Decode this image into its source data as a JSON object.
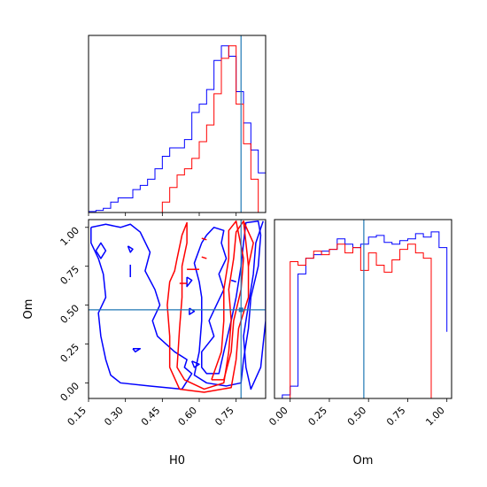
{
  "chart_data": {
    "type": "corner",
    "parameters": [
      "H0",
      "Om"
    ],
    "colors": {
      "series_a": "#0000ff",
      "series_b": "#ff0000",
      "truth": "#1f77b4"
    },
    "truth": {
      "H0": 0.77,
      "Om": 0.47
    },
    "axes": {
      "hist_H0": {
        "xlim": [
          0.15,
          0.87
        ],
        "ylabel": ""
      },
      "scatter": {
        "xlim": [
          0.15,
          0.87
        ],
        "ylim": [
          -0.1,
          1.05
        ],
        "xlabel": "H0",
        "ylabel": "Om",
        "xticks": [
          "0.15",
          "0.30",
          "0.45",
          "0.60",
          "0.75"
        ],
        "yticks": [
          "0.00",
          "0.25",
          "0.50",
          "0.75",
          "1.00"
        ]
      },
      "hist_Om": {
        "xlim": [
          -0.1,
          1.03
        ],
        "xlabel": "Om",
        "xticks": [
          "0.00",
          "0.25",
          "0.50",
          "0.75",
          "1.00"
        ]
      }
    },
    "hist_H0": {
      "blue": {
        "edges": [
          0.15,
          0.18,
          0.21,
          0.24,
          0.27,
          0.3,
          0.33,
          0.36,
          0.39,
          0.42,
          0.45,
          0.48,
          0.51,
          0.54,
          0.57,
          0.6,
          0.63,
          0.66,
          0.69,
          0.72,
          0.75,
          0.78,
          0.81,
          0.84,
          0.87
        ],
        "values": [
          0.005,
          0.01,
          0.02,
          0.05,
          0.07,
          0.07,
          0.11,
          0.13,
          0.16,
          0.21,
          0.27,
          0.31,
          0.31,
          0.35,
          0.48,
          0.52,
          0.59,
          0.73,
          0.8,
          0.75,
          0.58,
          0.43,
          0.3,
          0.19
        ]
      },
      "red": {
        "edges": [
          0.45,
          0.48,
          0.51,
          0.54,
          0.57,
          0.6,
          0.63,
          0.66,
          0.69,
          0.72,
          0.75,
          0.78,
          0.81,
          0.84
        ],
        "values": [
          0.05,
          0.12,
          0.18,
          0.21,
          0.26,
          0.34,
          0.42,
          0.57,
          0.74,
          0.8,
          0.52,
          0.33,
          0.16
        ]
      }
    },
    "hist_Om": {
      "blue": {
        "edges": [
          -0.05,
          0.0,
          0.05,
          0.1,
          0.15,
          0.2,
          0.25,
          0.3,
          0.35,
          0.4,
          0.45,
          0.5,
          0.55,
          0.6,
          0.65,
          0.7,
          0.75,
          0.8,
          0.85,
          0.9,
          0.95,
          1.0
        ],
        "values": [
          0.02,
          0.07,
          0.71,
          0.8,
          0.82,
          0.84,
          0.85,
          0.91,
          0.88,
          0.86,
          0.88,
          0.92,
          0.93,
          0.89,
          0.88,
          0.9,
          0.91,
          0.94,
          0.92,
          0.95,
          0.86,
          0.38
        ]
      },
      "red": {
        "edges": [
          0.0,
          0.05,
          0.1,
          0.15,
          0.2,
          0.25,
          0.3,
          0.35,
          0.4,
          0.45,
          0.5,
          0.55,
          0.6,
          0.65,
          0.7,
          0.75,
          0.8,
          0.85,
          0.9,
          0.95
        ],
        "values": [
          0.78,
          0.76,
          0.8,
          0.84,
          0.82,
          0.85,
          0.88,
          0.83,
          0.86,
          0.73,
          0.83,
          0.76,
          0.72,
          0.79,
          0.85,
          0.88,
          0.83,
          0.8,
          0.0
        ]
      }
    },
    "contours": {
      "blue": [
        [
          [
            0.16,
            1.0
          ],
          [
            0.22,
            1.02
          ],
          [
            0.28,
            1.0
          ],
          [
            0.32,
            1.02
          ],
          [
            0.36,
            0.97
          ],
          [
            0.4,
            0.84
          ],
          [
            0.38,
            0.72
          ],
          [
            0.42,
            0.6
          ],
          [
            0.44,
            0.5
          ],
          [
            0.41,
            0.4
          ],
          [
            0.43,
            0.3
          ],
          [
            0.5,
            0.2
          ],
          [
            0.55,
            0.15
          ],
          [
            0.54,
            0.1
          ],
          [
            0.57,
            0.06
          ],
          [
            0.53,
            -0.04
          ],
          [
            0.4,
            -0.02
          ],
          [
            0.28,
            0.0
          ],
          [
            0.24,
            0.05
          ],
          [
            0.22,
            0.15
          ],
          [
            0.2,
            0.3
          ],
          [
            0.19,
            0.45
          ],
          [
            0.22,
            0.55
          ],
          [
            0.21,
            0.7
          ],
          [
            0.19,
            0.8
          ],
          [
            0.16,
            0.9
          ],
          [
            0.16,
            1.0
          ]
        ],
        [
          [
            0.63,
            0.95
          ],
          [
            0.66,
            1.0
          ],
          [
            0.7,
            0.98
          ],
          [
            0.69,
            0.9
          ],
          [
            0.71,
            0.8
          ],
          [
            0.68,
            0.7
          ],
          [
            0.7,
            0.6
          ],
          [
            0.67,
            0.5
          ],
          [
            0.64,
            0.4
          ],
          [
            0.66,
            0.3
          ],
          [
            0.61,
            0.2
          ],
          [
            0.61,
            0.1
          ],
          [
            0.63,
            0.06
          ],
          [
            0.68,
            0.06
          ],
          [
            0.7,
            0.2
          ],
          [
            0.73,
            0.4
          ],
          [
            0.75,
            0.55
          ],
          [
            0.77,
            0.75
          ],
          [
            0.78,
            0.9
          ],
          [
            0.79,
            1.03
          ],
          [
            0.84,
            1.04
          ],
          [
            0.85,
            0.95
          ],
          [
            0.84,
            0.75
          ],
          [
            0.81,
            0.55
          ],
          [
            0.8,
            0.35
          ],
          [
            0.78,
            0.15
          ],
          [
            0.77,
            0.0
          ],
          [
            0.71,
            -0.02
          ],
          [
            0.63,
            0.0
          ],
          [
            0.58,
            0.05
          ],
          [
            0.6,
            0.2
          ],
          [
            0.61,
            0.4
          ],
          [
            0.61,
            0.55
          ],
          [
            0.6,
            0.65
          ],
          [
            0.58,
            0.77
          ],
          [
            0.61,
            0.9
          ],
          [
            0.63,
            0.95
          ]
        ],
        [
          [
            0.86,
            1.04
          ],
          [
            0.83,
            0.9
          ],
          [
            0.82,
            0.7
          ],
          [
            0.8,
            0.5
          ],
          [
            0.78,
            0.3
          ],
          [
            0.79,
            0.1
          ],
          [
            0.81,
            -0.04
          ],
          [
            0.85,
            0.1
          ],
          [
            0.87,
            0.4
          ],
          [
            0.87,
            0.7
          ],
          [
            0.87,
            1.04
          ]
        ],
        [
          [
            0.18,
            0.85
          ],
          [
            0.2,
            0.8
          ],
          [
            0.22,
            0.85
          ],
          [
            0.2,
            0.9
          ],
          [
            0.18,
            0.85
          ]
        ],
        [
          [
            0.31,
            0.88
          ],
          [
            0.33,
            0.86
          ],
          [
            0.32,
            0.84
          ],
          [
            0.31,
            0.88
          ]
        ],
        [
          [
            0.32,
            0.76
          ],
          [
            0.32,
            0.68
          ]
        ],
        [
          [
            0.33,
            0.22
          ],
          [
            0.36,
            0.22
          ],
          [
            0.34,
            0.2
          ],
          [
            0.33,
            0.22
          ]
        ],
        [
          [
            0.56,
            0.48
          ],
          [
            0.58,
            0.46
          ],
          [
            0.56,
            0.44
          ],
          [
            0.56,
            0.48
          ]
        ],
        [
          [
            0.55,
            0.68
          ],
          [
            0.57,
            0.66
          ],
          [
            0.55,
            0.62
          ],
          [
            0.55,
            0.68
          ]
        ],
        [
          [
            0.57,
            0.14
          ],
          [
            0.6,
            0.12
          ],
          [
            0.58,
            0.1
          ],
          [
            0.57,
            0.14
          ]
        ],
        [
          [
            0.73,
            0.66
          ],
          [
            0.75,
            0.65
          ]
        ]
      ],
      "red": [
        [
          [
            0.51,
            0.8
          ],
          [
            0.53,
            0.95
          ],
          [
            0.55,
            1.03
          ],
          [
            0.55,
            0.9
          ],
          [
            0.53,
            0.75
          ],
          [
            0.53,
            0.55
          ],
          [
            0.52,
            0.35
          ],
          [
            0.51,
            0.1
          ],
          [
            0.54,
            0.02
          ],
          [
            0.62,
            -0.04
          ],
          [
            0.7,
            0.0
          ],
          [
            0.72,
            0.2
          ],
          [
            0.73,
            0.4
          ],
          [
            0.72,
            0.6
          ],
          [
            0.74,
            0.8
          ],
          [
            0.75,
            0.97
          ],
          [
            0.78,
            1.04
          ],
          [
            0.79,
            0.9
          ],
          [
            0.8,
            0.75
          ],
          [
            0.8,
            0.55
          ],
          [
            0.76,
            0.35
          ],
          [
            0.75,
            0.15
          ],
          [
            0.73,
            -0.03
          ],
          [
            0.62,
            -0.06
          ],
          [
            0.52,
            -0.04
          ],
          [
            0.48,
            0.1
          ],
          [
            0.48,
            0.3
          ],
          [
            0.47,
            0.5
          ],
          [
            0.48,
            0.65
          ],
          [
            0.5,
            0.72
          ],
          [
            0.51,
            0.8
          ]
        ],
        [
          [
            0.65,
            0.02
          ],
          [
            0.69,
            0.2
          ],
          [
            0.7,
            0.4
          ],
          [
            0.7,
            0.6
          ],
          [
            0.72,
            0.8
          ],
          [
            0.72,
            0.98
          ],
          [
            0.75,
            1.04
          ],
          [
            0.78,
            0.8
          ],
          [
            0.77,
            0.6
          ],
          [
            0.74,
            0.4
          ],
          [
            0.73,
            0.2
          ],
          [
            0.7,
            0.02
          ],
          [
            0.65,
            0.02
          ]
        ],
        [
          [
            0.78,
            1.04
          ],
          [
            0.82,
            0.9
          ],
          [
            0.8,
            0.75
          ]
        ],
        [
          [
            0.55,
            0.73
          ],
          [
            0.6,
            0.73
          ]
        ],
        [
          [
            0.52,
            0.64
          ],
          [
            0.55,
            0.64
          ]
        ],
        [
          [
            0.61,
            0.93
          ],
          [
            0.63,
            0.92
          ]
        ],
        [
          [
            0.61,
            0.81
          ],
          [
            0.63,
            0.8
          ]
        ]
      ]
    }
  }
}
